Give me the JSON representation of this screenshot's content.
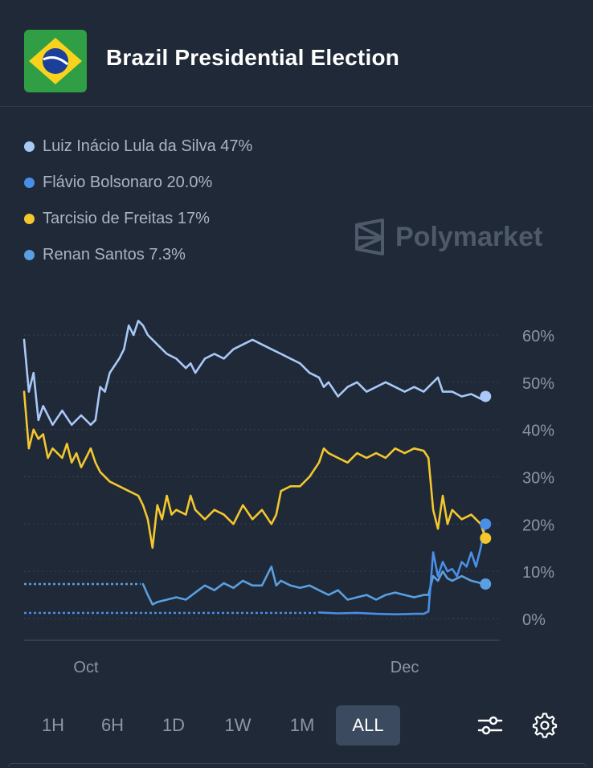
{
  "header": {
    "title": "Brazil Presidential Election",
    "flag_icon": "brazil-flag-icon"
  },
  "watermark": {
    "text": "Polymarket"
  },
  "legend": [
    {
      "label": "Luiz Inácio Lula da Silva 47%",
      "color": "#a9c8f7"
    },
    {
      "label": "Flávio Bolsonaro 20.0%",
      "color": "#4a8fe7"
    },
    {
      "label": "Tarcisio de Freitas 17%",
      "color": "#f3c72e"
    },
    {
      "label": "Renan Santos 7.3%",
      "color": "#5a9fe0"
    }
  ],
  "timeframes": {
    "buttons": [
      "1H",
      "6H",
      "1D",
      "1W",
      "1M",
      "ALL"
    ],
    "active": "ALL"
  },
  "toolbar": {
    "filter_icon": "sliders-icon",
    "settings_icon": "gear-icon"
  },
  "chart_data": {
    "type": "line",
    "ylim": [
      0,
      60
    ],
    "yticks": [
      0,
      10,
      20,
      30,
      40,
      50,
      60
    ],
    "ytick_labels": [
      "0%",
      "10%",
      "20%",
      "30%",
      "40%",
      "50%",
      "60%"
    ],
    "x_range": [
      0,
      100
    ],
    "xticks": [
      {
        "label": "Oct",
        "x": 13
      },
      {
        "label": "Dec",
        "x": 80
      }
    ],
    "grid": true,
    "series": [
      {
        "name": "Luiz Inácio Lula da Silva",
        "color": "#a9c8f7",
        "points": [
          [
            0,
            59
          ],
          [
            1,
            48
          ],
          [
            2,
            52
          ],
          [
            3,
            42
          ],
          [
            4,
            45
          ],
          [
            6,
            41
          ],
          [
            8,
            44
          ],
          [
            10,
            41
          ],
          [
            12,
            43
          ],
          [
            14,
            41
          ],
          [
            15,
            42
          ],
          [
            16,
            49
          ],
          [
            17,
            48
          ],
          [
            18,
            52
          ],
          [
            20,
            55
          ],
          [
            21,
            57
          ],
          [
            22,
            62
          ],
          [
            23,
            60
          ],
          [
            24,
            63
          ],
          [
            25,
            62
          ],
          [
            26,
            60
          ],
          [
            28,
            58
          ],
          [
            30,
            56
          ],
          [
            32,
            55
          ],
          [
            34,
            53
          ],
          [
            35,
            54
          ],
          [
            36,
            52
          ],
          [
            38,
            55
          ],
          [
            40,
            56
          ],
          [
            42,
            55
          ],
          [
            44,
            57
          ],
          [
            46,
            58
          ],
          [
            48,
            59
          ],
          [
            50,
            58
          ],
          [
            52,
            57
          ],
          [
            54,
            56
          ],
          [
            56,
            55
          ],
          [
            58,
            54
          ],
          [
            60,
            52
          ],
          [
            62,
            51
          ],
          [
            63,
            49
          ],
          [
            64,
            50
          ],
          [
            66,
            47
          ],
          [
            68,
            49
          ],
          [
            70,
            50
          ],
          [
            72,
            48
          ],
          [
            74,
            49
          ],
          [
            76,
            50
          ],
          [
            78,
            49
          ],
          [
            80,
            48
          ],
          [
            82,
            49
          ],
          [
            84,
            48
          ],
          [
            86,
            50
          ],
          [
            87,
            51
          ],
          [
            88,
            48
          ],
          [
            90,
            48
          ],
          [
            92,
            47
          ],
          [
            94,
            47.5
          ],
          [
            96,
            46.5
          ],
          [
            97,
            47
          ]
        ]
      },
      {
        "name": "Tarcisio de Freitas",
        "color": "#f3c72e",
        "points": [
          [
            0,
            48
          ],
          [
            1,
            36
          ],
          [
            2,
            40
          ],
          [
            3,
            38
          ],
          [
            4,
            39
          ],
          [
            5,
            34
          ],
          [
            6,
            36
          ],
          [
            7,
            35
          ],
          [
            8,
            34
          ],
          [
            9,
            37
          ],
          [
            10,
            33
          ],
          [
            11,
            35
          ],
          [
            12,
            32
          ],
          [
            13,
            34
          ],
          [
            14,
            36
          ],
          [
            15,
            33
          ],
          [
            16,
            31
          ],
          [
            18,
            29
          ],
          [
            20,
            28
          ],
          [
            22,
            27
          ],
          [
            24,
            26
          ],
          [
            25,
            24
          ],
          [
            26,
            21
          ],
          [
            27,
            15
          ],
          [
            28,
            24
          ],
          [
            29,
            21
          ],
          [
            30,
            26
          ],
          [
            31,
            22
          ],
          [
            32,
            23
          ],
          [
            34,
            22
          ],
          [
            35,
            26
          ],
          [
            36,
            23
          ],
          [
            38,
            21
          ],
          [
            40,
            23
          ],
          [
            42,
            22
          ],
          [
            44,
            20
          ],
          [
            46,
            24
          ],
          [
            48,
            21
          ],
          [
            50,
            23
          ],
          [
            52,
            20
          ],
          [
            53,
            22
          ],
          [
            54,
            27
          ],
          [
            56,
            28
          ],
          [
            58,
            28
          ],
          [
            60,
            30
          ],
          [
            62,
            33
          ],
          [
            63,
            36
          ],
          [
            64,
            35
          ],
          [
            66,
            34
          ],
          [
            68,
            33
          ],
          [
            70,
            35
          ],
          [
            72,
            34
          ],
          [
            74,
            35
          ],
          [
            76,
            34
          ],
          [
            78,
            36
          ],
          [
            80,
            35
          ],
          [
            82,
            36
          ],
          [
            84,
            35.5
          ],
          [
            85,
            34
          ],
          [
            86,
            23
          ],
          [
            87,
            19
          ],
          [
            88,
            26
          ],
          [
            89,
            20
          ],
          [
            90,
            23
          ],
          [
            91,
            22
          ],
          [
            92,
            21
          ],
          [
            94,
            22
          ],
          [
            95,
            21
          ],
          [
            96,
            20
          ],
          [
            97,
            17
          ]
        ]
      },
      {
        "name": "Flávio Bolsonaro",
        "color": "#4a8fe7",
        "points": [
          [
            0,
            1.2
          ],
          [
            20,
            1.2
          ],
          [
            40,
            1.2
          ],
          [
            60,
            1.2
          ],
          [
            62,
            1.3
          ],
          [
            66,
            1.1
          ],
          [
            70,
            1.2
          ],
          [
            74,
            1.0
          ],
          [
            78,
            0.9
          ],
          [
            82,
            1.0
          ],
          [
            84,
            1.0
          ],
          [
            85,
            1.5
          ],
          [
            86,
            14
          ],
          [
            87,
            9
          ],
          [
            88,
            12
          ],
          [
            89,
            10
          ],
          [
            90,
            10.5
          ],
          [
            91,
            9
          ],
          [
            92,
            12
          ],
          [
            93,
            11
          ],
          [
            94,
            14
          ],
          [
            95,
            11
          ],
          [
            96,
            15
          ],
          [
            97,
            20
          ]
        ]
      },
      {
        "name": "Renan Santos",
        "color": "#5a9fe0",
        "points": [
          [
            0,
            7.3
          ],
          [
            10,
            7.3
          ],
          [
            20,
            7.3
          ],
          [
            25,
            7.3
          ],
          [
            26,
            5
          ],
          [
            27,
            3
          ],
          [
            28,
            3.5
          ],
          [
            30,
            4
          ],
          [
            32,
            4.5
          ],
          [
            34,
            4
          ],
          [
            36,
            5.5
          ],
          [
            38,
            7
          ],
          [
            40,
            6
          ],
          [
            42,
            7.5
          ],
          [
            44,
            6.5
          ],
          [
            46,
            8
          ],
          [
            48,
            7
          ],
          [
            50,
            7
          ],
          [
            52,
            11
          ],
          [
            53,
            7
          ],
          [
            54,
            8
          ],
          [
            56,
            7
          ],
          [
            58,
            6.5
          ],
          [
            60,
            7
          ],
          [
            62,
            6
          ],
          [
            64,
            5
          ],
          [
            66,
            6
          ],
          [
            68,
            4
          ],
          [
            70,
            4.5
          ],
          [
            72,
            5
          ],
          [
            74,
            4
          ],
          [
            76,
            5
          ],
          [
            78,
            5.5
          ],
          [
            80,
            5
          ],
          [
            82,
            4.5
          ],
          [
            84,
            5
          ],
          [
            85,
            5
          ],
          [
            86,
            9
          ],
          [
            87,
            8
          ],
          [
            88,
            10
          ],
          [
            89,
            8.5
          ],
          [
            90,
            8
          ],
          [
            92,
            9
          ],
          [
            94,
            8
          ],
          [
            96,
            7.5
          ],
          [
            97,
            7.3
          ]
        ]
      }
    ],
    "dotted_segments": [
      {
        "series": "Renan Santos",
        "x_from": 0,
        "x_to": 24.5
      },
      {
        "series": "Flávio Bolsonaro",
        "x_from": 0,
        "x_to": 61.5
      }
    ]
  }
}
